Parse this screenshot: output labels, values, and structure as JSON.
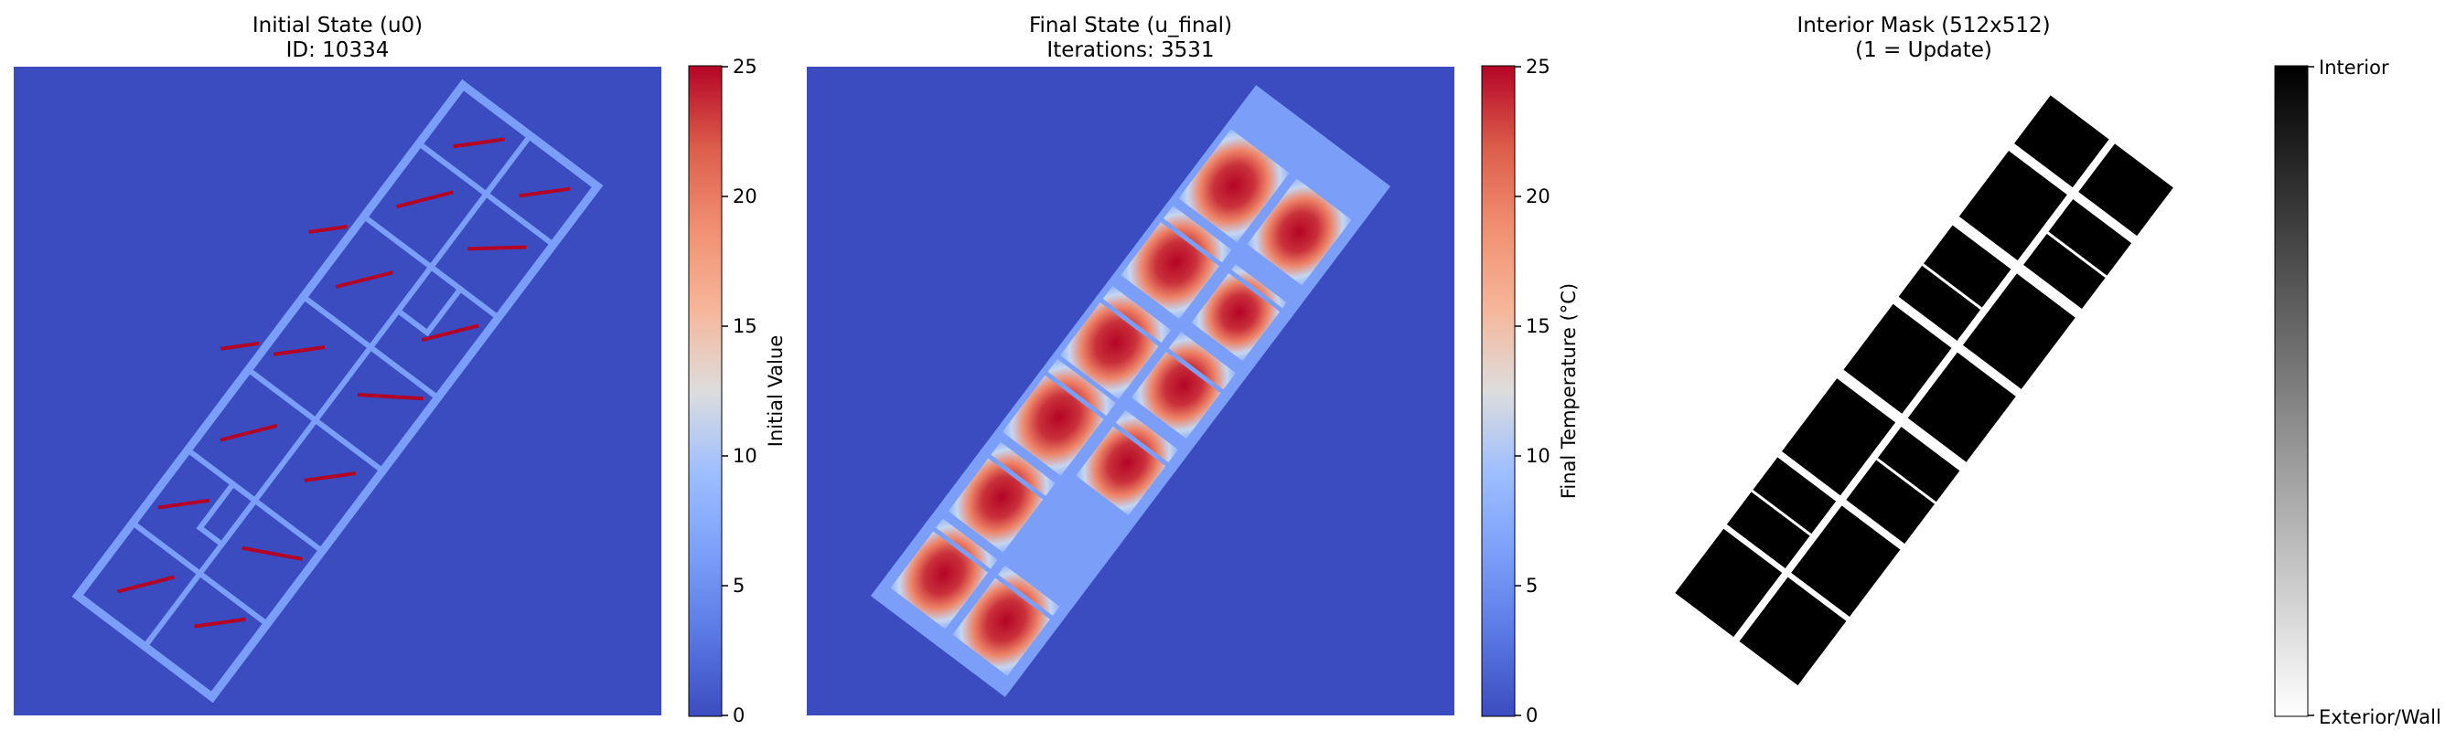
{
  "chart_data": [
    {
      "type": "heatmap",
      "title": "Initial State (u0)",
      "subtitle": "ID: 10334",
      "colormap": "coolwarm",
      "colorbar": {
        "label": "Initial Value",
        "range": [
          0,
          25
        ],
        "ticks": [
          0,
          5,
          10,
          15,
          20,
          25
        ]
      },
      "values": {
        "background": 0,
        "walls": 7.5,
        "radiators": 25
      }
    },
    {
      "type": "heatmap",
      "title": "Final State (u_final)",
      "subtitle": "Iterations: 3531",
      "colormap": "coolwarm",
      "colorbar": {
        "label": "Final Temperature (°C)",
        "range": [
          0,
          25
        ],
        "ticks": [
          0,
          5,
          10,
          15,
          20,
          25
        ]
      },
      "values": {
        "background": 0,
        "room_min": 7.5,
        "room_max": 25
      }
    },
    {
      "type": "heatmap",
      "title": "Interior Mask (512x512)",
      "subtitle": "(1 = Update)",
      "colormap": "gray_r",
      "colorbar": {
        "label": "",
        "range": [
          0,
          1
        ],
        "ticks": [
          "Exterior/Wall",
          "Interior"
        ]
      },
      "values": {
        "exterior_wall": 0,
        "interior": 1
      }
    }
  ],
  "colors": {
    "cold": "#3b4cc0",
    "mid": "#dddddd",
    "hot": "#b40426",
    "wall": "#7b9ff9",
    "mask_interior": "#000000",
    "mask_exterior": "#ffffff"
  }
}
